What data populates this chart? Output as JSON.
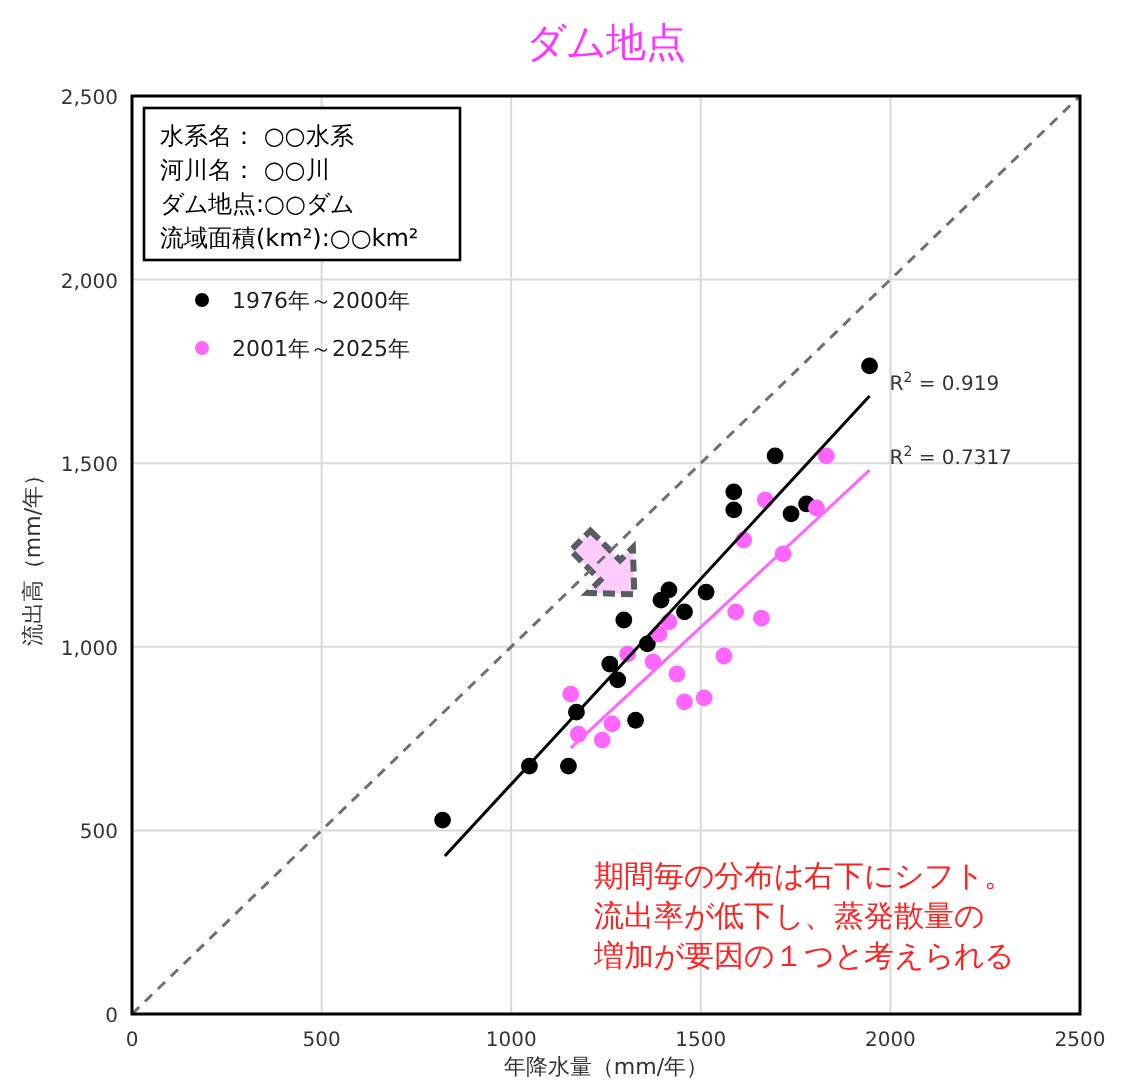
{
  "chart_data": {
    "type": "scatter",
    "title": "ダム地点",
    "xlabel": "年降水量（mm/年）",
    "ylabel": "流出高（mm/年）",
    "xlim": [
      0,
      2500
    ],
    "xticks": [
      0,
      500,
      1000,
      1500,
      2000,
      2500
    ],
    "ylim": [
      0,
      2500
    ],
    "yticks": [
      0,
      500,
      {
        "value": 1000,
        "label": "1,000"
      },
      {
        "value": 1500,
        "label": "1,500"
      },
      {
        "value": 2000,
        "label": "2,000"
      },
      {
        "value": 2500,
        "label": "2,500"
      }
    ],
    "grid": true,
    "legend": "top left",
    "marker": "circle",
    "series": [
      {
        "name": "1976年～2000年",
        "color": "#000000",
        "x": [
          819,
          1048,
          1151,
          1172,
          1328,
          1260,
          1281,
          1297,
          1359,
          1395,
          1416,
          1457,
          1514,
          1587,
          1587,
          1696,
          1738,
          1779,
          1945
        ],
        "values": [
          528,
          675,
          675,
          822,
          800,
          953,
          910,
          1073,
          1008,
          1127,
          1155,
          1095,
          1149,
          1422,
          1373,
          1520,
          1362,
          1389,
          1765
        ]
      },
      {
        "name": "2001年～2025年",
        "color": "#ff66ff",
        "x": [
          1157,
          1177,
          1240,
          1266,
          1307,
          1374,
          1390,
          1416,
          1437,
          1457,
          1509,
          1561,
          1592,
          1613,
          1660,
          1670,
          1717,
          1805,
          1831
        ],
        "values": [
          871,
          762,
          746,
          790,
          980,
          959,
          1035,
          1068,
          926,
          850,
          861,
          975,
          1095,
          1291,
          1078,
          1400,
          1253,
          1378,
          1520
        ]
      },
      {
        "type": "line",
        "marker": "none",
        "line_style": "solid",
        "color": "#000000",
        "x": [
          825,
          1945
        ],
        "values": [
          430,
          1683
        ]
      },
      {
        "type": "line",
        "marker": "none",
        "line_style": "solid",
        "color": "#ff66ff",
        "x": [
          1157,
          1945
        ],
        "values": [
          724,
          1481
        ]
      },
      {
        "type": "line",
        "marker": "none",
        "line_style": "dashed",
        "color": "#707070",
        "x": [
          0,
          2500
        ],
        "values": [
          0,
          2500
        ]
      }
    ],
    "annotations": [
      {
        "text": "R$^{2}$ = 0.919",
        "x": 1945,
        "y": 1683
      },
      {
        "text": "R$^{2}$ = 0.7317",
        "x": 1945,
        "y": 1481
      },
      "水系名： ○○水系",
      "河川名： ○○川",
      "ダム地点:○○ダム",
      "流域面積(km²):○○km²",
      "期間毎の分布は右下にシフト。",
      "流出率が低下し、蒸発散量の",
      "増加が要因の１つと考えられる"
    ]
  }
}
